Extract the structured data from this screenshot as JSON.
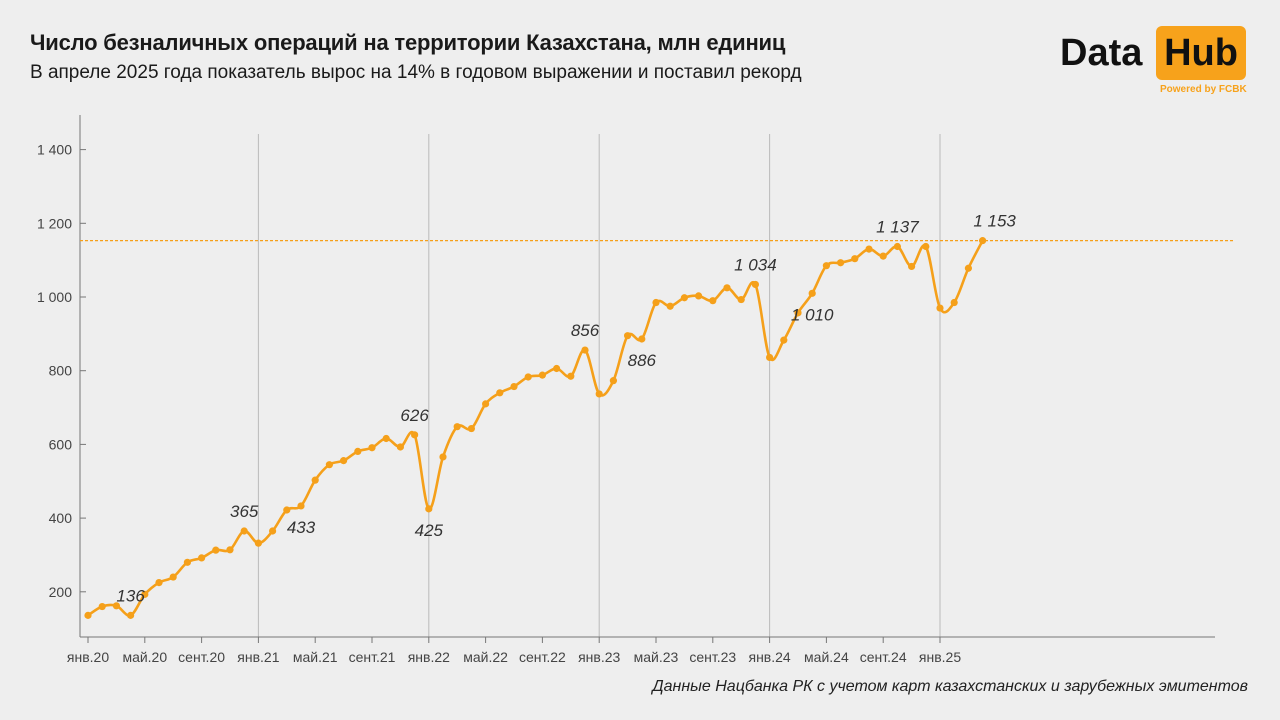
{
  "header": {
    "title": "Число безналичных операций на территории Казахстана, млн единиц",
    "subtitle": "В апреле 2025 года показатель вырос на 14% в годовом выражении и поставил рекорд"
  },
  "logo": {
    "word1": "Data",
    "word2": "Hub",
    "tagline": "Powered by FCBK"
  },
  "source_note": "Данные Нацбанка РК с учетом карт казахстанских и зарубежных эмитентов",
  "colors": {
    "line": "#f5a01a",
    "background": "#eeeeee",
    "grid": "#bbbbbb"
  },
  "chart_data": {
    "type": "line",
    "title": "Число безналичных операций на территории Казахстана, млн единиц",
    "x": [
      "янв.20",
      "фев.20",
      "мар.20",
      "апр.20",
      "май.20",
      "июн.20",
      "июл.20",
      "авг.20",
      "сент.20",
      "окт.20",
      "ноя.20",
      "дек.20",
      "янв.21",
      "фев.21",
      "мар.21",
      "апр.21",
      "май.21",
      "июн.21",
      "июл.21",
      "авг.21",
      "сент.21",
      "окт.21",
      "ноя.21",
      "дек.21",
      "янв.22",
      "фев.22",
      "мар.22",
      "апр.22",
      "май.22",
      "июн.22",
      "июл.22",
      "авг.22",
      "сент.22",
      "окт.22",
      "ноя.22",
      "дек.22",
      "янв.23",
      "фев.23",
      "мар.23",
      "апр.23",
      "май.23",
      "июн.23",
      "июл.23",
      "авг.23",
      "сент.23",
      "окт.23",
      "ноя.23",
      "дек.23",
      "янв.24",
      "фев.24",
      "мар.24",
      "апр.24",
      "май.24",
      "июн.24",
      "июл.24",
      "авг.24",
      "сент.24",
      "окт.24",
      "ноя.24",
      "дек.24",
      "янв.25",
      "фев.25",
      "мар.25",
      "апр.25"
    ],
    "series": [
      {
        "values": [
          136,
          160,
          162,
          136,
          193,
          225,
          240,
          280,
          292,
          313,
          314,
          365,
          332,
          365,
          422,
          433,
          503,
          545,
          556,
          581,
          591,
          616,
          593,
          626,
          425,
          566,
          648,
          643,
          710,
          740,
          757,
          783,
          788,
          806,
          785,
          856,
          737,
          773,
          895,
          886,
          985,
          975,
          998,
          1003,
          990,
          1025,
          993,
          1034,
          836,
          883,
          957,
          1010,
          1085,
          1093,
          1104,
          1130,
          1111,
          1137,
          1083,
          1137,
          970,
          985,
          1078,
          1153
        ]
      }
    ],
    "x_ticks": [
      "янв.20",
      "май.20",
      "сент.20",
      "янв.21",
      "май.21",
      "сент.21",
      "янв.22",
      "май.22",
      "сент.22",
      "янв.23",
      "май.23",
      "сент.23",
      "янв.24",
      "май.24",
      "сент.24",
      "янв.25"
    ],
    "y_ticks": [
      "200",
      "400",
      "600",
      "800",
      "1 000",
      "1 200",
      "1 400"
    ],
    "y_tick_values": [
      200,
      400,
      600,
      800,
      1000,
      1200,
      1400
    ],
    "ylim": [
      80,
      1460
    ],
    "year_gridlines": [
      "янв.21",
      "янв.22",
      "янв.23",
      "янв.24",
      "янв.25"
    ],
    "reference_line": 1153,
    "annotations": [
      {
        "index": 3,
        "text": "136",
        "pos": "above"
      },
      {
        "index": 11,
        "text": "365",
        "pos": "above"
      },
      {
        "index": 15,
        "text": "433",
        "pos": "below"
      },
      {
        "index": 23,
        "text": "626",
        "pos": "above"
      },
      {
        "index": 24,
        "text": "425",
        "pos": "below"
      },
      {
        "index": 35,
        "text": "856",
        "pos": "above"
      },
      {
        "index": 39,
        "text": "886",
        "pos": "below"
      },
      {
        "index": 47,
        "text": "1 034",
        "pos": "above"
      },
      {
        "index": 51,
        "text": "1 010",
        "pos": "below"
      },
      {
        "index": 57,
        "text": "1 137",
        "pos": "above"
      },
      {
        "index": 63,
        "text": "1 153",
        "pos": "above"
      }
    ]
  }
}
